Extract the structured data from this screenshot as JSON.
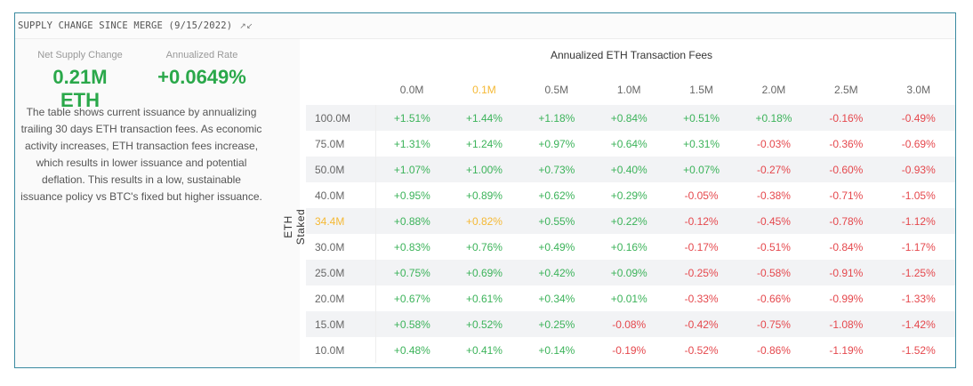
{
  "header": {
    "title": "SUPPLY CHANGE SINCE MERGE (9/15/2022)",
    "collapse_icon": "collapse-arrows-icon"
  },
  "stats": {
    "net_supply": {
      "label": "Net Supply Change",
      "value": "0.21M ETH"
    },
    "annualized": {
      "label": "Annualized Rate",
      "value": "+0.0649%"
    }
  },
  "description": "The table shows current issuance by annualizing trailing 30 days ETH transaction fees. As economic activity increases, ETH transaction fees increase, which results in lower issuance and potential deflation. This results in a low, sustainable issuance policy vs BTC's fixed but higher issuance.",
  "colors": {
    "positive": "#3cb35a",
    "negative": "#e5484d",
    "highlight": "#f5b935",
    "border": "#3a8aa0"
  },
  "table": {
    "title": "Annualized ETH Transaction Fees",
    "row_axis_label": "ETH Staked",
    "columns": [
      "0.0M",
      "0.1M",
      "0.5M",
      "1.0M",
      "1.5M",
      "2.0M",
      "2.5M",
      "3.0M"
    ],
    "highlight_column": 1,
    "highlight_row": 4,
    "rows": [
      {
        "label": "100.0M",
        "values": [
          "+1.51%",
          "+1.44%",
          "+1.18%",
          "+0.84%",
          "+0.51%",
          "+0.18%",
          "-0.16%",
          "-0.49%"
        ]
      },
      {
        "label": "75.0M",
        "values": [
          "+1.31%",
          "+1.24%",
          "+0.97%",
          "+0.64%",
          "+0.31%",
          "-0.03%",
          "-0.36%",
          "-0.69%"
        ]
      },
      {
        "label": "50.0M",
        "values": [
          "+1.07%",
          "+1.00%",
          "+0.73%",
          "+0.40%",
          "+0.07%",
          "-0.27%",
          "-0.60%",
          "-0.93%"
        ]
      },
      {
        "label": "40.0M",
        "values": [
          "+0.95%",
          "+0.89%",
          "+0.62%",
          "+0.29%",
          "-0.05%",
          "-0.38%",
          "-0.71%",
          "-1.05%"
        ]
      },
      {
        "label": "34.4M",
        "values": [
          "+0.88%",
          "+0.82%",
          "+0.55%",
          "+0.22%",
          "-0.12%",
          "-0.45%",
          "-0.78%",
          "-1.12%"
        ]
      },
      {
        "label": "30.0M",
        "values": [
          "+0.83%",
          "+0.76%",
          "+0.49%",
          "+0.16%",
          "-0.17%",
          "-0.51%",
          "-0.84%",
          "-1.17%"
        ]
      },
      {
        "label": "25.0M",
        "values": [
          "+0.75%",
          "+0.69%",
          "+0.42%",
          "+0.09%",
          "-0.25%",
          "-0.58%",
          "-0.91%",
          "-1.25%"
        ]
      },
      {
        "label": "20.0M",
        "values": [
          "+0.67%",
          "+0.61%",
          "+0.34%",
          "+0.01%",
          "-0.33%",
          "-0.66%",
          "-0.99%",
          "-1.33%"
        ]
      },
      {
        "label": "15.0M",
        "values": [
          "+0.58%",
          "+0.52%",
          "+0.25%",
          "-0.08%",
          "-0.42%",
          "-0.75%",
          "-1.08%",
          "-1.42%"
        ]
      },
      {
        "label": "10.0M",
        "values": [
          "+0.48%",
          "+0.41%",
          "+0.14%",
          "-0.19%",
          "-0.52%",
          "-0.86%",
          "-1.19%",
          "-1.52%"
        ]
      }
    ]
  }
}
